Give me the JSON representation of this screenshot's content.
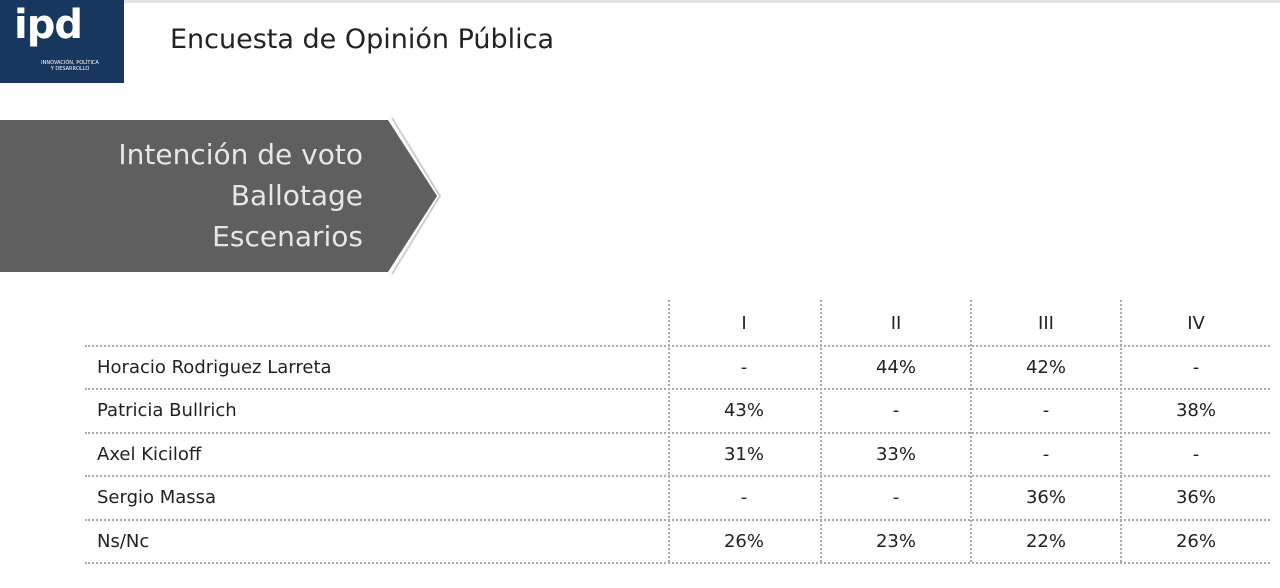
{
  "logo": {
    "text": "ipd",
    "tagline": "INNOVACIÓN, POLÍTICA Y DESARROLLO"
  },
  "header": {
    "title": "Encuesta de Opinión Pública"
  },
  "banner": {
    "lines": [
      "Intención de voto",
      "Ballotage",
      "Escenarios"
    ]
  },
  "table": {
    "columns": [
      "I",
      "II",
      "III",
      "IV"
    ],
    "rows": [
      [
        "Horacio Rodriguez Larreta",
        "-",
        "44%",
        "42%",
        "-"
      ],
      [
        "Patricia Bullrich",
        "43%",
        "-",
        "-",
        "38%"
      ],
      [
        "Axel Kiciloff",
        "31%",
        "33%",
        "-",
        "-"
      ],
      [
        "Sergio Massa",
        "-",
        "-",
        "36%",
        "36%"
      ],
      [
        "Ns/Nc",
        "26%",
        "23%",
        "22%",
        "26%"
      ]
    ]
  }
}
